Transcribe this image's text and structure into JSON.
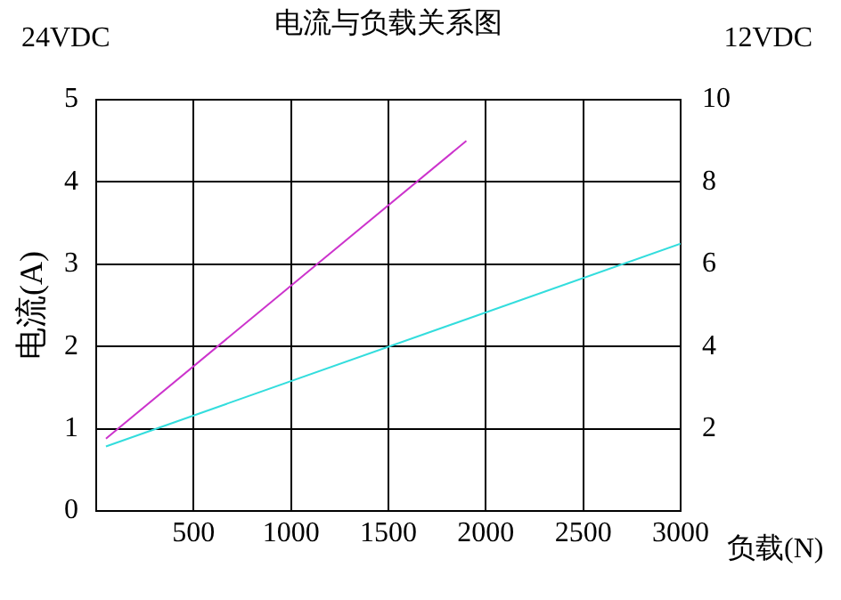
{
  "chart_data": {
    "type": "line",
    "title": "电流与负载关系图",
    "xlabel": "负载(N)",
    "ylabel": "电流(A)",
    "annotations": [
      "24VDC",
      "12VDC"
    ],
    "x": [
      50,
      1900
    ],
    "series": [
      {
        "color": "#cc33cc",
        "values": [
          0.88,
          4.5
        ]
      },
      {
        "color": "#33dddd",
        "x": [
          50,
          3000
        ],
        "values": [
          1.57,
          6.5
        ],
        "axis": "y2"
      }
    ],
    "xlim": [
      0,
      3000
    ],
    "xticks": [
      500,
      1000,
      1500,
      2000,
      2500,
      3000
    ],
    "ylim": [
      0,
      5
    ],
    "yticks": [
      0,
      1,
      2,
      3,
      4,
      5
    ],
    "y2lim": [
      0,
      10
    ],
    "y2ticks": [
      2,
      4,
      6,
      8,
      10
    ],
    "grid": true,
    "legend": false,
    "marker": "none",
    "line_style": "solid"
  }
}
